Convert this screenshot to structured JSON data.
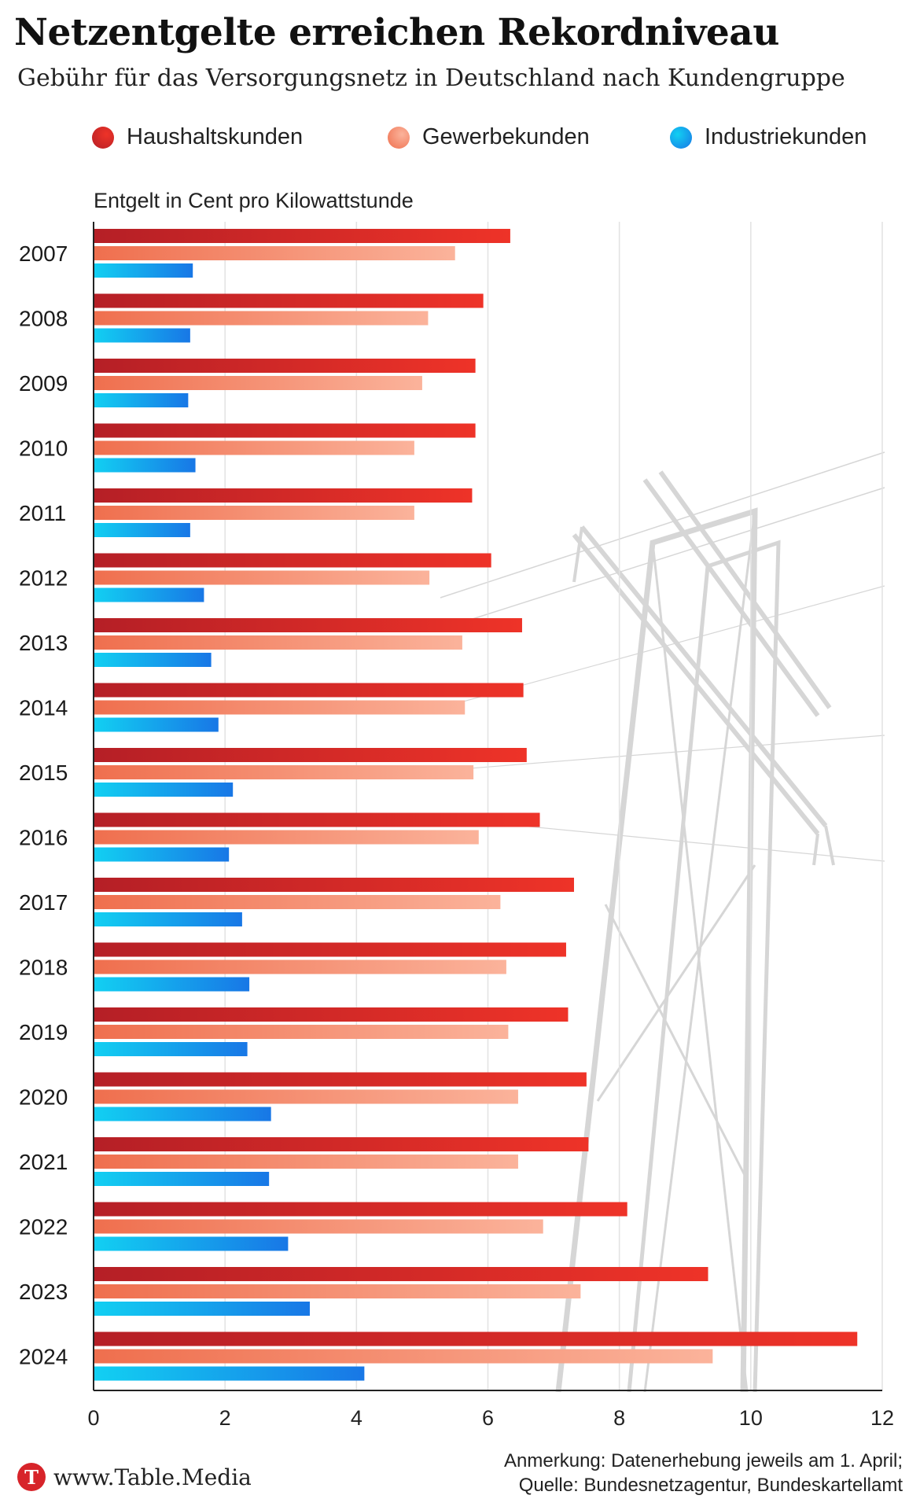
{
  "title": "Netzentgelte erreichen Rekordniveau",
  "subtitle": "Gebühr für das Versorgungsnetz in Deutschland nach Kundengruppe",
  "legend": [
    {
      "label": "Haushaltskunden",
      "color": "#d7242a"
    },
    {
      "label": "Gewerbekunden",
      "color": "#f4916e"
    },
    {
      "label": "Industriekunden",
      "color": "#1a9be8"
    }
  ],
  "unit_label": "Entgelt in Cent pro Kilowattstunde",
  "footer": {
    "logo_letter": "T",
    "site": "www.Table.Media",
    "note_line1": "Anmerkung: Datenerhebung jeweils am 1. April;",
    "note_line2": "Quelle: Bundesnetzagentur, Bundeskartellamt"
  },
  "colors": {
    "haushalt_dark": "#b51f26",
    "haushalt_light": "#ee3328",
    "gewerbe_dark": "#ef6f4e",
    "gewerbe_light": "#fbb39b",
    "industrie_light": "#12d0f2",
    "industrie_dark": "#1877e6"
  },
  "chart_data": {
    "type": "bar",
    "orientation": "horizontal",
    "categories": [
      "2007",
      "2008",
      "2009",
      "2010",
      "2011",
      "2012",
      "2013",
      "2014",
      "2015",
      "2016",
      "2017",
      "2018",
      "2019",
      "2020",
      "2021",
      "2022",
      "2023",
      "2024"
    ],
    "series": [
      {
        "name": "Haushaltskunden",
        "values": [
          6.34,
          5.93,
          5.81,
          5.81,
          5.76,
          6.05,
          6.52,
          6.54,
          6.59,
          6.79,
          7.31,
          7.19,
          7.22,
          7.5,
          7.53,
          8.12,
          9.35,
          11.62
        ]
      },
      {
        "name": "Gewerbekunden",
        "values": [
          5.5,
          5.09,
          5.0,
          4.88,
          4.88,
          5.11,
          5.61,
          5.65,
          5.78,
          5.86,
          6.19,
          6.28,
          6.31,
          6.46,
          6.46,
          6.84,
          7.41,
          9.42
        ]
      },
      {
        "name": "Industriekunden",
        "values": [
          1.51,
          1.47,
          1.44,
          1.55,
          1.47,
          1.68,
          1.79,
          1.9,
          2.12,
          2.06,
          2.26,
          2.37,
          2.34,
          2.7,
          2.67,
          2.96,
          3.29,
          4.12
        ]
      }
    ],
    "xlim": [
      0,
      12
    ],
    "xticks": [
      "0",
      "2",
      "4",
      "6",
      "8",
      "10",
      "12"
    ],
    "xlabel": "",
    "ylabel": "Entgelt in Cent pro Kilowattstunde",
    "grid": true,
    "legend_position": "top"
  }
}
